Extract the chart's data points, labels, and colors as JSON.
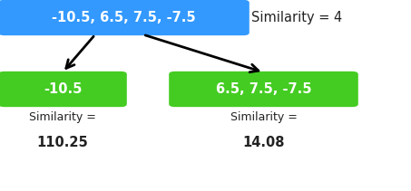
{
  "root_label": "-10.5, 6.5, 7.5, -7.5",
  "root_similarity_label": "Similarity = 4",
  "root_box_color": "#3399FF",
  "root_text_color": "#FFFFFF",
  "left_label": "-10.5",
  "left_similarity_line1": "Similarity =",
  "left_similarity_line2": "110.25",
  "right_label": "6.5, 7.5, -7.5",
  "right_similarity_line1": "Similarity =",
  "right_similarity_line2": "14.08",
  "child_box_color": "#44CC22",
  "child_text_color": "#FFFFFF",
  "label_text_color": "#222222",
  "background_color": "#FFFFFF",
  "root_fontsize": 10.5,
  "child_fontsize": 10.5,
  "similarity_fontsize": 9,
  "similarity_value_fontsize": 10.5,
  "root_similarity_fontsize": 10.5,
  "fig_width": 4.53,
  "fig_height": 2.11,
  "dpi": 100
}
